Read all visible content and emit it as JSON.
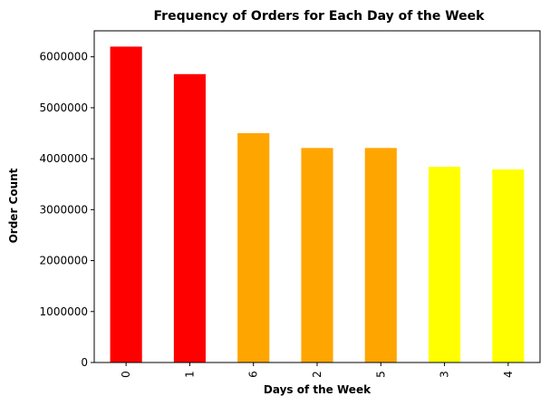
{
  "chart_data": {
    "type": "bar",
    "title": "Frequency of Orders for Each Day of the Week",
    "xlabel": "Days of the Week",
    "ylabel": "Order Count",
    "categories": [
      "0",
      "1",
      "6",
      "2",
      "5",
      "3",
      "4"
    ],
    "values": [
      6200000,
      5660000,
      4500000,
      4210000,
      4210000,
      3840000,
      3790000
    ],
    "colors": [
      "#ff0000",
      "#ff0000",
      "#ffa500",
      "#ffa500",
      "#ffa500",
      "#ffff00",
      "#ffff00"
    ],
    "ylim": [
      0,
      6510000
    ],
    "yticks": [
      0,
      1000000,
      2000000,
      3000000,
      4000000,
      5000000,
      6000000
    ],
    "ytick_labels": [
      "0",
      "1000000",
      "2000000",
      "3000000",
      "4000000",
      "5000000",
      "6000000"
    ],
    "grid": false,
    "legend": "none"
  }
}
